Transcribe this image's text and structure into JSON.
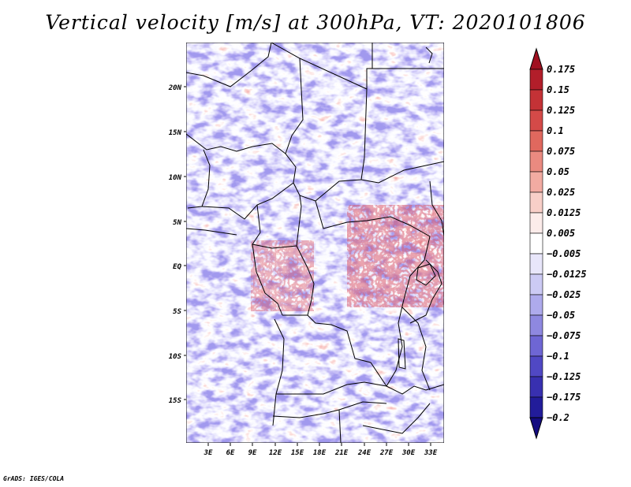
{
  "title": "Vertical velocity [m/s] at 300hPa, VT: 2020101806",
  "credit": "GrADS: IGES/COLA",
  "map": {
    "latitude_labels": [
      "20N",
      "15N",
      "10N",
      "5N",
      "EQ",
      "5S",
      "10S",
      "15S"
    ],
    "longitude_labels": [
      "3E",
      "6E",
      "9E",
      "12E",
      "15E",
      "18E",
      "21E",
      "24E",
      "27E",
      "30E",
      "33E"
    ],
    "field": "vertical velocity",
    "level": "300hPa",
    "valid_time": "2020101806",
    "border_color": "#000000"
  },
  "colorbar": {
    "labels": [
      "0.175",
      "0.15",
      "0.125",
      "0.1",
      "0.075",
      "0.05",
      "0.025",
      "0.0125",
      "0.005",
      "−0.005",
      "−0.0125",
      "−0.025",
      "−0.05",
      "−0.075",
      "−0.1",
      "−0.125",
      "−0.175",
      "−0.2"
    ],
    "colors": [
      "#a01020",
      "#b21e2a",
      "#c43236",
      "#d44a48",
      "#e0685e",
      "#ea8a80",
      "#f2aba2",
      "#f8cfc8",
      "#fcecea",
      "#ffffff",
      "#e8e6fa",
      "#cccaf4",
      "#aeaaec",
      "#8e88e0",
      "#6e66d4",
      "#5048c4",
      "#3830b0",
      "#221c9a",
      "#140c80"
    ]
  }
}
